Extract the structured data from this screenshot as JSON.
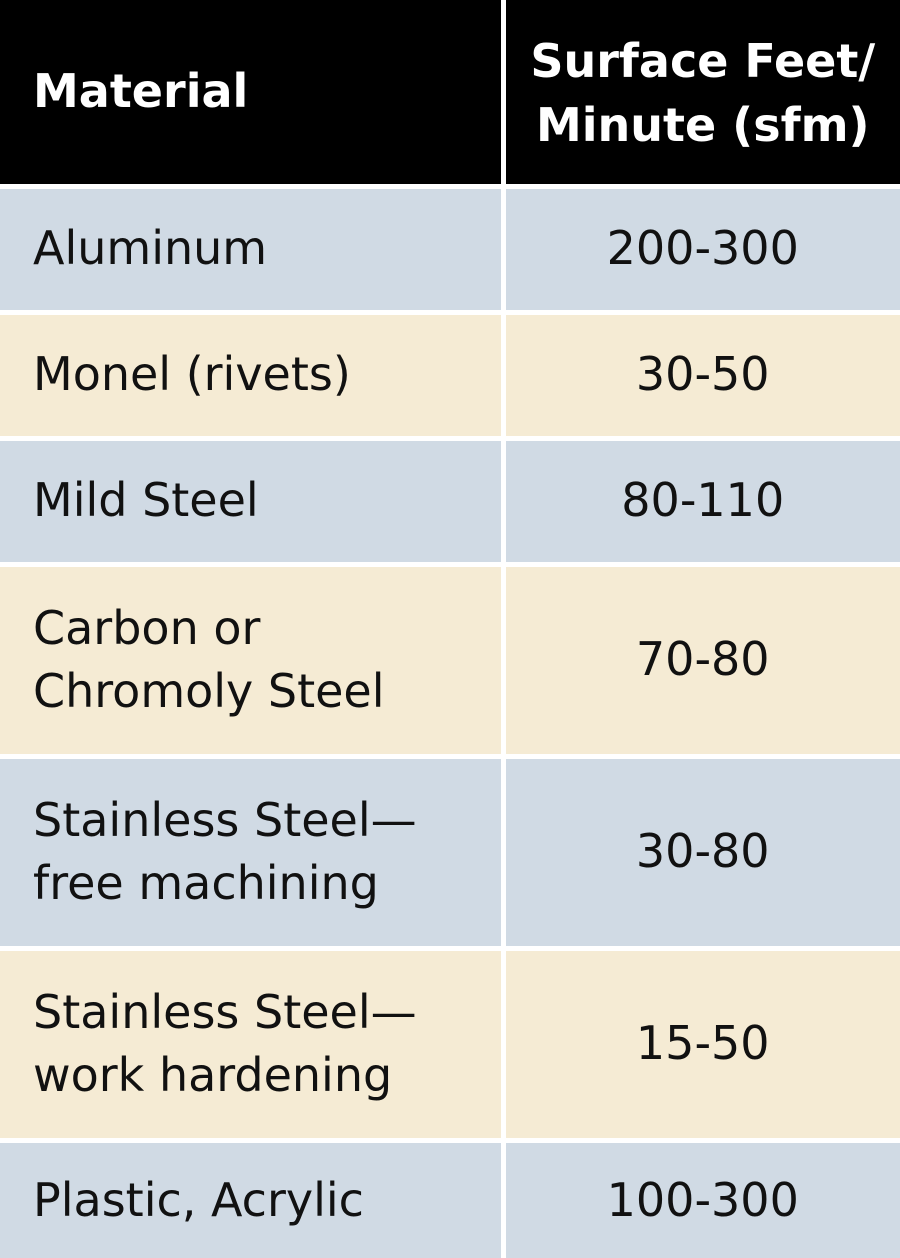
{
  "table": {
    "headers": {
      "material": "Material",
      "speed_line1": "Surface Feet/",
      "speed_line2": "Minute (sfm)"
    },
    "rows": [
      {
        "material_line1": "Aluminum",
        "material_line2": "",
        "sfm": "200-300"
      },
      {
        "material_line1": "Monel (rivets)",
        "material_line2": "",
        "sfm": "30-50"
      },
      {
        "material_line1": "Mild Steel",
        "material_line2": "",
        "sfm": "80-110"
      },
      {
        "material_line1": "Carbon or",
        "material_line2": "Chromoly Steel",
        "sfm": "70-80"
      },
      {
        "material_line1": "Stainless Steel—",
        "material_line2": "free machining",
        "sfm": "30-80"
      },
      {
        "material_line1": "Stainless Steel—",
        "material_line2": "work hardening",
        "sfm": "15-50"
      },
      {
        "material_line1": "Plastic, Acrylic",
        "material_line2": "",
        "sfm": "100-300"
      }
    ]
  },
  "colors": {
    "header_bg": "#000000",
    "row_blue": "#d0dae4",
    "row_tan": "#f5ebd4",
    "divider": "#ffffff"
  }
}
